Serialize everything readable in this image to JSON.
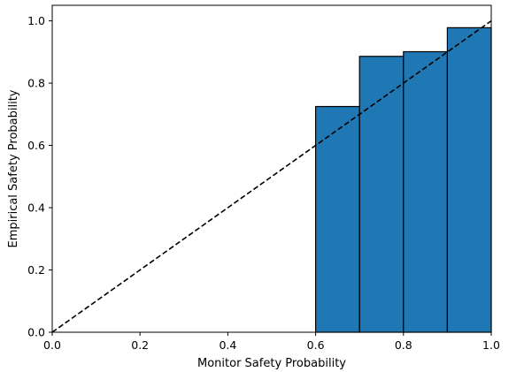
{
  "chart_data": {
    "type": "bar",
    "xlabel": "Monitor Safety Probability",
    "ylabel": "Empirical Safety Probability",
    "xlim": [
      0.0,
      1.0
    ],
    "ylim": [
      0.0,
      1.05
    ],
    "xticks": [
      "0.0",
      "0.2",
      "0.4",
      "0.6",
      "0.8",
      "1.0"
    ],
    "yticks": [
      "0.0",
      "0.2",
      "0.4",
      "0.6",
      "0.8",
      "1.0"
    ],
    "bins": [
      {
        "x0": 0.6,
        "x1": 0.7,
        "value": 0.725
      },
      {
        "x0": 0.7,
        "x1": 0.8,
        "value": 0.886
      },
      {
        "x0": 0.8,
        "x1": 0.9,
        "value": 0.901
      },
      {
        "x0": 0.9,
        "x1": 1.0,
        "value": 0.978
      }
    ],
    "reference_line": {
      "from": [
        0.0,
        0.0
      ],
      "to": [
        1.0,
        1.0
      ],
      "style": "dashed"
    },
    "bar_color": "#1f77b4",
    "edge_color": "#000000",
    "grid": false
  }
}
